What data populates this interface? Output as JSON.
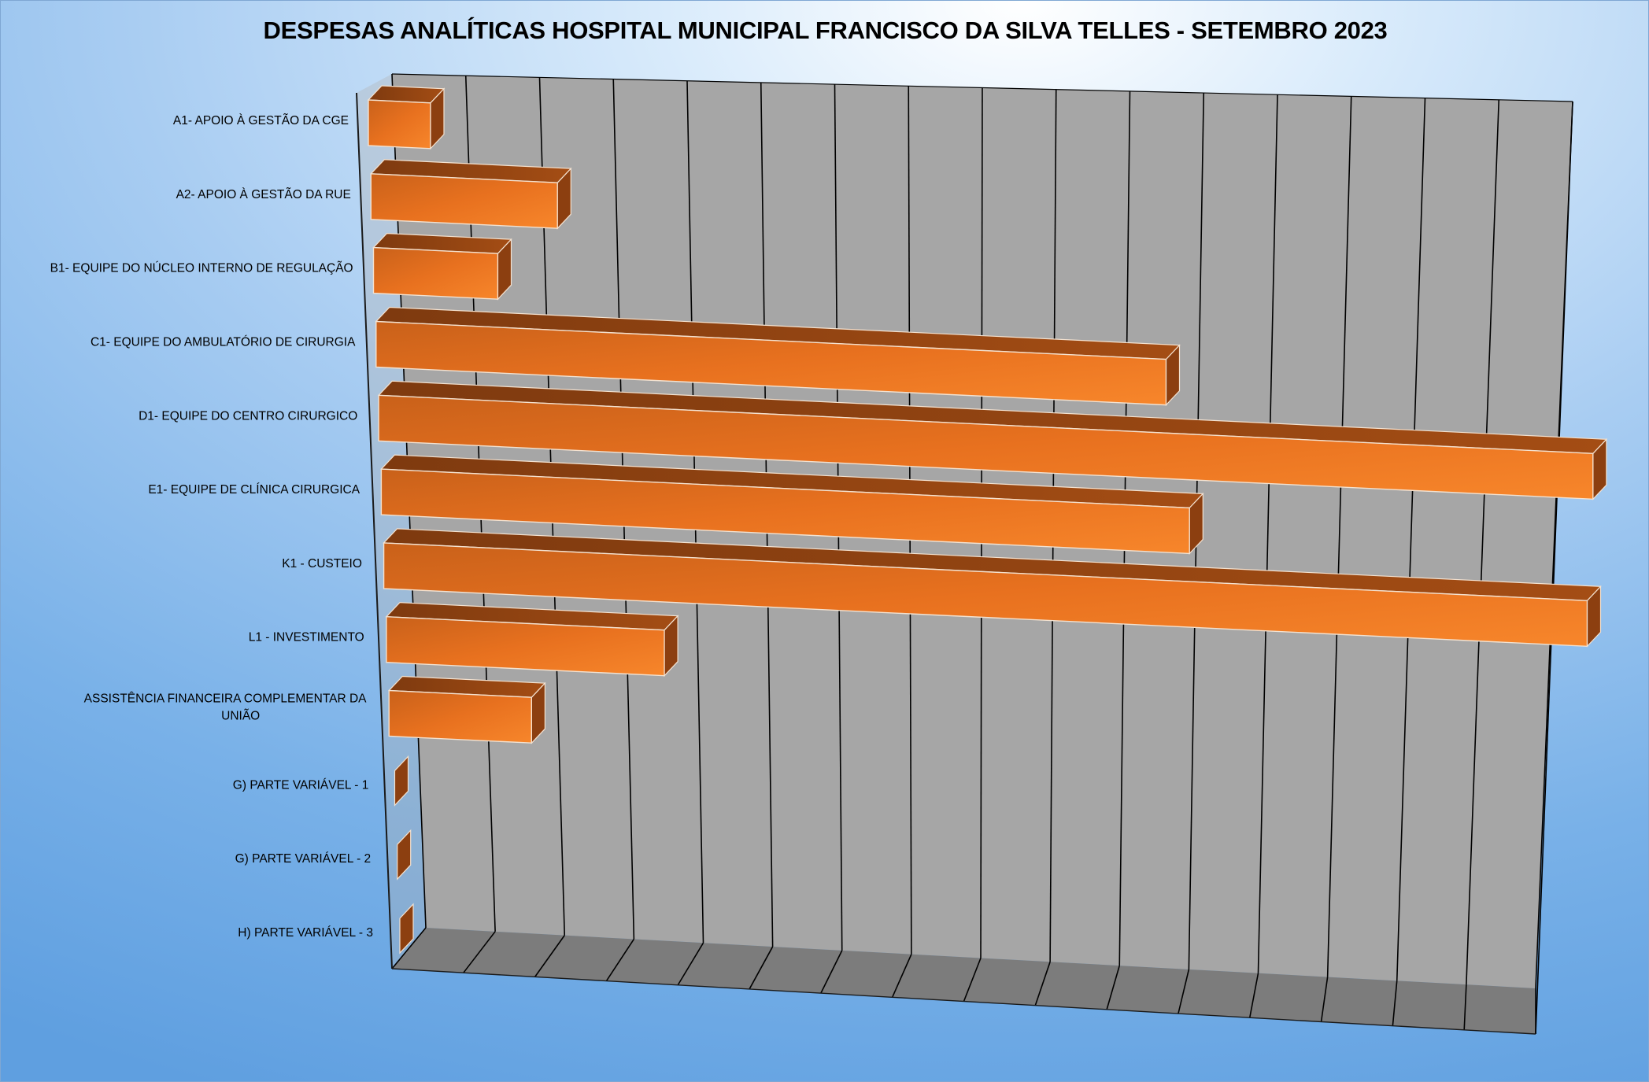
{
  "chart_data": {
    "type": "bar",
    "orientation": "horizontal",
    "style": "3d",
    "title": "DESPESAS ANALÍTICAS HOSPITAL MUNICIPAL FRANCISCO DA SILVA TELLES - SETEMBRO 2023",
    "categories": [
      "A1- APOIO À GESTÃO DA CGE",
      "A2- APOIO À GESTÃO DA RUE",
      "B1- EQUIPE DO NÚCLEO INTERNO DE REGULAÇÃO",
      "C1- EQUIPE DO AMBULATÓRIO DE CIRURGIA",
      "D1- EQUIPE DO CENTRO CIRURGICO",
      "E1- EQUIPE DE CLÍNICA CIRURGICA",
      "K1 - CUSTEIO",
      "L1 - INVESTIMENTO",
      "ASSISTÊNCIA FINANCEIRA COMPLEMENTAR DA UNIÃO",
      "G) PARTE VARIÁVEL - 1",
      "G) PARTE VARIÁVEL - 2",
      "H) PARTE VARIÁVEL - 3"
    ],
    "values": [
      0.85,
      2.55,
      1.7,
      10.8,
      16.6,
      11.05,
      16.45,
      3.8,
      1.95,
      0,
      0,
      0
    ],
    "xlim": [
      0,
      16
    ],
    "x_tick_count": 16,
    "axis_tick_labels_shown": false,
    "grid": true,
    "legend": "none",
    "colors": {
      "bar_front": "#f07820",
      "bar_top": "#9a4712",
      "bar_side": "#8c3f10",
      "wall": "#a6a6a6",
      "floor": "#7c7c7c",
      "gridline": "#000000"
    }
  }
}
